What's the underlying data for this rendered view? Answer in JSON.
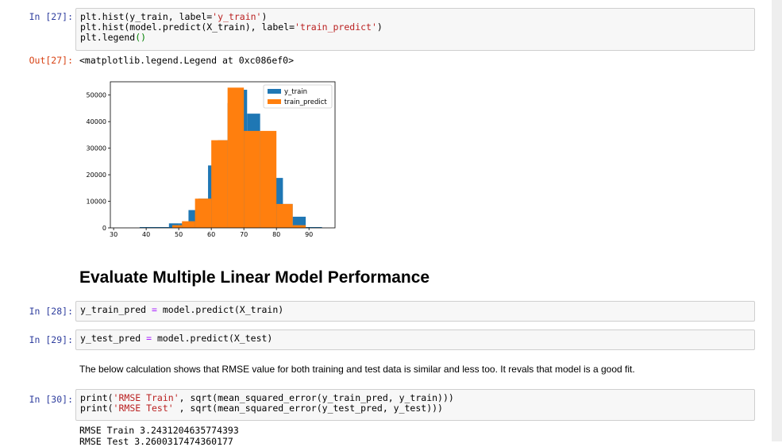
{
  "cells": {
    "c27": {
      "in_prompt": "In [27]:",
      "lines": [
        [
          {
            "t": "plt.hist(y_train, label="
          },
          {
            "t": "'y_train'",
            "c": "s"
          },
          {
            "t": ")"
          }
        ],
        [
          {
            "t": "plt.hist(model.predict(X_train), label="
          },
          {
            "t": "'train_predict'",
            "c": "s"
          },
          {
            "t": ")"
          }
        ],
        [
          {
            "t": "plt.legend"
          },
          {
            "t": "()",
            "c": "p"
          }
        ]
      ],
      "out_prompt": "Out[27]:",
      "output": "<matplotlib.legend.Legend at 0xc086ef0>"
    },
    "heading": "Evaluate Multiple Linear Model Performance",
    "c28": {
      "in_prompt": "In [28]:",
      "lines": [
        [
          {
            "t": "y_train_pred "
          },
          {
            "t": "=",
            "c": "o"
          },
          {
            "t": " model.predict(X_train)"
          }
        ]
      ]
    },
    "c29": {
      "in_prompt": "In [29]:",
      "lines": [
        [
          {
            "t": "y_test_pred "
          },
          {
            "t": "=",
            "c": "o"
          },
          {
            "t": " model.predict(X_test)"
          }
        ]
      ]
    },
    "markdown": "The below calculation shows that RMSE value for both training and test data is similar and less too. It revals that model is a good fit.",
    "c30": {
      "in_prompt": "In [30]:",
      "lines": [
        [
          {
            "t": "print("
          },
          {
            "t": "'RMSE Train'",
            "c": "s"
          },
          {
            "t": ", sqrt(mean_squared_error(y_train_pred, y_train)))"
          }
        ],
        [
          {
            "t": "print("
          },
          {
            "t": "'RMSE Test'",
            "c": "s"
          },
          {
            "t": " , sqrt(mean_squared_error(y_test_pred, y_test)))"
          }
        ]
      ],
      "output": "RMSE Train 3.2431204635774393\nRMSE Test 3.2600317474360177"
    }
  },
  "colors": {
    "series_blue": "#1f77b4",
    "series_orange": "#ff7f0e"
  },
  "chart_data": {
    "type": "bar",
    "xlim": [
      29,
      98
    ],
    "ylim": [
      0,
      55000
    ],
    "xticks": [
      30,
      40,
      50,
      60,
      70,
      80,
      90
    ],
    "yticks": [
      0,
      10000,
      20000,
      30000,
      40000,
      50000
    ],
    "grid": false,
    "legend_position": "top-right",
    "series": [
      {
        "name": "y_train",
        "color": "#1f77b4",
        "bins": [
          {
            "x0": 38,
            "x1": 44,
            "y": 300
          },
          {
            "x0": 44,
            "x1": 47,
            "y": 300
          },
          {
            "x0": 47,
            "x1": 50,
            "y": 1700
          },
          {
            "x0": 50,
            "x1": 53,
            "y": 1700
          },
          {
            "x0": 53,
            "x1": 56,
            "y": 6700
          },
          {
            "x0": 56,
            "x1": 59,
            "y": 11000
          },
          {
            "x0": 59,
            "x1": 62,
            "y": 23500
          },
          {
            "x0": 62,
            "x1": 65,
            "y": 33000
          },
          {
            "x0": 65,
            "x1": 68,
            "y": 47000
          },
          {
            "x0": 68,
            "x1": 71,
            "y": 52000
          },
          {
            "x0": 71,
            "x1": 75,
            "y": 43000
          },
          {
            "x0": 75,
            "x1": 78,
            "y": 36000
          },
          {
            "x0": 78,
            "x1": 82,
            "y": 18800
          },
          {
            "x0": 82,
            "x1": 85,
            "y": 9000
          },
          {
            "x0": 85,
            "x1": 89,
            "y": 4200
          },
          {
            "x0": 89,
            "x1": 94,
            "y": 300
          }
        ]
      },
      {
        "name": "train_predict",
        "color": "#ff7f0e",
        "bins": [
          {
            "x0": 48,
            "x1": 51,
            "y": 1000
          },
          {
            "x0": 51,
            "x1": 55,
            "y": 2500
          },
          {
            "x0": 55,
            "x1": 60,
            "y": 11000
          },
          {
            "x0": 60,
            "x1": 65,
            "y": 33000
          },
          {
            "x0": 65,
            "x1": 70,
            "y": 52800
          },
          {
            "x0": 70,
            "x1": 75,
            "y": 36500
          },
          {
            "x0": 75,
            "x1": 80,
            "y": 36500
          },
          {
            "x0": 80,
            "x1": 85,
            "y": 9000
          },
          {
            "x0": 85,
            "x1": 89,
            "y": 1000
          }
        ]
      }
    ]
  }
}
